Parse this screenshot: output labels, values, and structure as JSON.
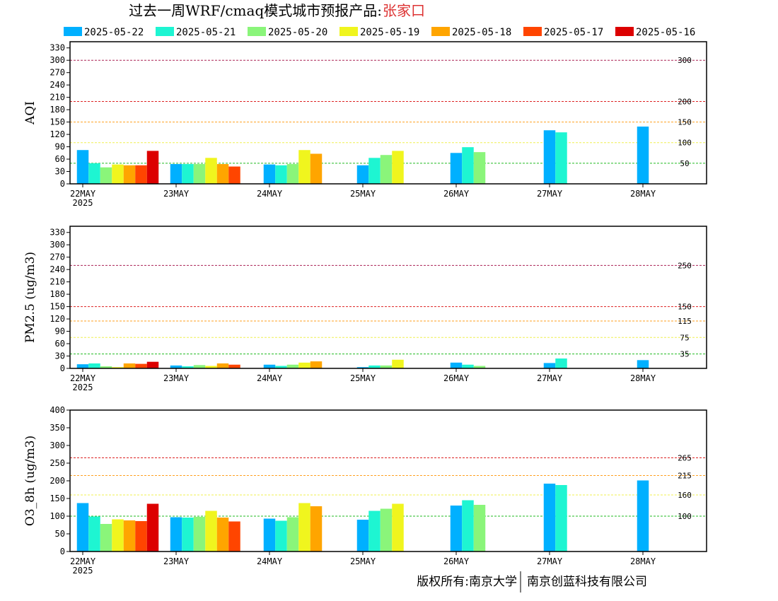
{
  "title": {
    "main": "过去一周WRF/cmaq模式城市预报产品:",
    "city": "张家口"
  },
  "legend": [
    {
      "label": "2025-05-22",
      "color": "#00b0ff"
    },
    {
      "label": "2025-05-21",
      "color": "#1ef5d2"
    },
    {
      "label": "2025-05-20",
      "color": "#8af57a"
    },
    {
      "label": "2025-05-19",
      "color": "#f0f51e"
    },
    {
      "label": "2025-05-18",
      "color": "#ffa500"
    },
    {
      "label": "2025-05-17",
      "color": "#ff4500"
    },
    {
      "label": "2025-05-16",
      "color": "#dc0000"
    }
  ],
  "x_axis": {
    "tick_labels": [
      "22MAY",
      "23MAY",
      "24MAY",
      "25MAY",
      "26MAY",
      "27MAY",
      "28MAY"
    ],
    "year_label": "2025"
  },
  "copyright": {
    "left": "版权所有:南京大学",
    "right": "南京创蓝科技有限公司"
  },
  "chart_data": [
    {
      "type": "bar",
      "ylabel": "AQI",
      "ylim": [
        0,
        345
      ],
      "yticks": [
        0,
        30,
        60,
        90,
        120,
        150,
        180,
        210,
        240,
        270,
        300,
        330
      ],
      "days": [
        "22MAY",
        "23MAY",
        "24MAY",
        "25MAY",
        "26MAY",
        "27MAY",
        "28MAY"
      ],
      "series": [
        {
          "name": "2025-05-22",
          "values": [
            82,
            48,
            47,
            45,
            75,
            130,
            139
          ]
        },
        {
          "name": "2025-05-21",
          "values": [
            50,
            48,
            45,
            63,
            89,
            125,
            null
          ]
        },
        {
          "name": "2025-05-20",
          "values": [
            40,
            48,
            48,
            70,
            77,
            null,
            null
          ]
        },
        {
          "name": "2025-05-19",
          "values": [
            47,
            63,
            82,
            80,
            null,
            null,
            null
          ]
        },
        {
          "name": "2025-05-18",
          "values": [
            45,
            48,
            73,
            null,
            null,
            null,
            null
          ]
        },
        {
          "name": "2025-05-17",
          "values": [
            45,
            42,
            null,
            null,
            null,
            null,
            null
          ]
        },
        {
          "name": "2025-05-16",
          "values": [
            80,
            null,
            null,
            null,
            null,
            null,
            null
          ]
        }
      ],
      "thresholds": [
        {
          "value": 50,
          "label": "50",
          "color": "#22bb22"
        },
        {
          "value": 100,
          "label": "100",
          "color": "#f0f050"
        },
        {
          "value": 150,
          "label": "150",
          "color": "#ffa020"
        },
        {
          "value": 200,
          "label": "200",
          "color": "#dd2222"
        },
        {
          "value": 300,
          "label": "300",
          "color": "#aa2255"
        }
      ]
    },
    {
      "type": "bar",
      "ylabel": "PM2.5 (ug/m3)",
      "ylim": [
        0,
        345
      ],
      "yticks": [
        0,
        30,
        60,
        90,
        120,
        150,
        180,
        210,
        240,
        270,
        300,
        330
      ],
      "days": [
        "22MAY",
        "23MAY",
        "24MAY",
        "25MAY",
        "26MAY",
        "27MAY",
        "28MAY"
      ],
      "series": [
        {
          "name": "2025-05-22",
          "values": [
            10,
            7,
            9,
            3,
            14,
            13,
            20
          ]
        },
        {
          "name": "2025-05-21",
          "values": [
            12,
            5,
            6,
            7,
            9,
            24,
            null
          ]
        },
        {
          "name": "2025-05-20",
          "values": [
            5,
            8,
            9,
            7,
            6,
            null,
            null
          ]
        },
        {
          "name": "2025-05-19",
          "values": [
            3,
            6,
            14,
            21,
            null,
            null,
            null
          ]
        },
        {
          "name": "2025-05-18",
          "values": [
            12,
            12,
            17,
            null,
            null,
            null,
            null
          ]
        },
        {
          "name": "2025-05-17",
          "values": [
            11,
            9,
            null,
            null,
            null,
            null,
            null
          ]
        },
        {
          "name": "2025-05-16",
          "values": [
            16,
            null,
            null,
            null,
            null,
            null,
            null
          ]
        }
      ],
      "thresholds": [
        {
          "value": 35,
          "label": "35",
          "color": "#22bb22"
        },
        {
          "value": 75,
          "label": "75",
          "color": "#f0f050"
        },
        {
          "value": 115,
          "label": "115",
          "color": "#ffa020"
        },
        {
          "value": 150,
          "label": "150",
          "color": "#dd2222"
        },
        {
          "value": 250,
          "label": "250",
          "color": "#aa2255"
        }
      ]
    },
    {
      "type": "bar",
      "ylabel": "O3_8h (ug/m3)",
      "ylim": [
        0,
        400
      ],
      "yticks": [
        0,
        50,
        100,
        150,
        200,
        250,
        300,
        350,
        400
      ],
      "ytick_labels": [
        "0",
        "50",
        "100",
        "150",
        "200",
        "250",
        "300",
        "350",
        "400"
      ],
      "days": [
        "22MAY",
        "23MAY",
        "24MAY",
        "25MAY",
        "26MAY",
        "27MAY",
        "28MAY"
      ],
      "series": [
        {
          "name": "2025-05-22",
          "values": [
            137,
            97,
            93,
            90,
            130,
            192,
            201
          ]
        },
        {
          "name": "2025-05-21",
          "values": [
            99,
            96,
            87,
            115,
            145,
            188,
            null
          ]
        },
        {
          "name": "2025-05-20",
          "values": [
            78,
            98,
            97,
            121,
            132,
            null,
            null
          ]
        },
        {
          "name": "2025-05-19",
          "values": [
            91,
            115,
            137,
            135,
            null,
            null,
            null
          ]
        },
        {
          "name": "2025-05-18",
          "values": [
            88,
            96,
            128,
            null,
            null,
            null,
            null
          ]
        },
        {
          "name": "2025-05-17",
          "values": [
            86,
            85,
            null,
            null,
            null,
            null,
            null
          ]
        },
        {
          "name": "2025-05-16",
          "values": [
            135,
            null,
            null,
            null,
            null,
            null,
            null
          ]
        }
      ],
      "thresholds": [
        {
          "value": 100,
          "label": "100",
          "color": "#22bb22"
        },
        {
          "value": 160,
          "label": "160",
          "color": "#f0f050"
        },
        {
          "value": 215,
          "label": "215",
          "color": "#ffa020"
        },
        {
          "value": 265,
          "label": "265",
          "color": "#dd2222"
        }
      ]
    }
  ]
}
